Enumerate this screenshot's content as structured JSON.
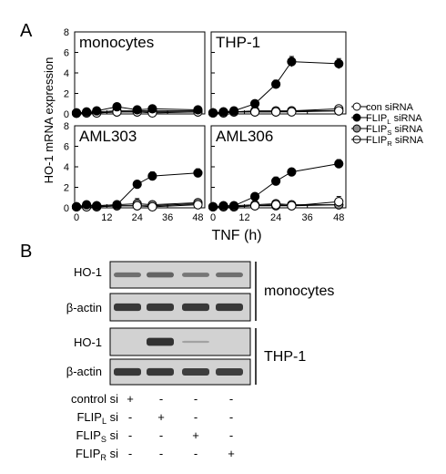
{
  "panel_a": {
    "letter": "A",
    "ylabel": "HO-1 mRNA expression",
    "xlabel": "TNF (h)",
    "legend": [
      {
        "base": "con siRNA",
        "sub": "",
        "suffix": "",
        "style": "open"
      },
      {
        "base": "FLIP",
        "sub": "L",
        "suffix": " siRNA",
        "style": "filled"
      },
      {
        "base": "FLIP",
        "sub": "S",
        "suffix": " siRNA",
        "style": "gray"
      },
      {
        "base": "FLIP",
        "sub": "R",
        "suffix": " siRNA",
        "style": "open-dot"
      }
    ]
  },
  "chart_data": [
    {
      "type": "line",
      "title": "monocytes",
      "x": [
        0,
        4,
        8,
        16,
        24,
        30,
        48
      ],
      "xlim": [
        0,
        50
      ],
      "ylim": [
        0,
        8
      ],
      "xticks": [
        "0",
        "12",
        "24",
        "36",
        "48"
      ],
      "yticks": [
        "0",
        "2",
        "4",
        "6",
        "8"
      ],
      "series": [
        {
          "name": "con siRNA",
          "values": [
            0.1,
            0.1,
            0.1,
            0.2,
            0.2,
            0.1,
            0.2
          ],
          "errors": [
            0.15,
            0.15,
            0.15,
            0.2,
            0.2,
            0.2,
            0.25
          ]
        },
        {
          "name": "FLIPL siRNA",
          "values": [
            0.1,
            0.2,
            0.3,
            0.7,
            0.4,
            0.5,
            0.4
          ],
          "errors": [
            0.15,
            0.2,
            0.2,
            0.3,
            0.3,
            0.3,
            0.3
          ]
        },
        {
          "name": "FLIPS siRNA",
          "values": [
            0.1,
            0.1,
            0.2,
            0.3,
            0.3,
            0.3,
            0.3
          ],
          "errors": [
            0.15,
            0.15,
            0.15,
            0.2,
            0.2,
            0.2,
            0.25
          ]
        },
        {
          "name": "FLIPR siRNA",
          "values": [
            0.05,
            0.1,
            0.1,
            0.2,
            0.2,
            0.2,
            0.2
          ],
          "errors": [
            0.15,
            0.15,
            0.15,
            0.2,
            0.2,
            0.2,
            0.2
          ]
        }
      ]
    },
    {
      "type": "line",
      "title": "THP-1",
      "x": [
        0,
        4,
        8,
        16,
        24,
        30,
        48
      ],
      "xlim": [
        0,
        50
      ],
      "ylim": [
        0,
        8
      ],
      "xticks": [
        "0",
        "12",
        "24",
        "36",
        "48"
      ],
      "yticks": [
        "0",
        "2",
        "4",
        "6",
        "8"
      ],
      "series": [
        {
          "name": "con siRNA",
          "values": [
            0.1,
            0.1,
            0.2,
            0.2,
            0.2,
            0.2,
            0.3
          ],
          "errors": [
            0.15,
            0.15,
            0.2,
            0.2,
            0.2,
            0.2,
            0.25
          ]
        },
        {
          "name": "FLIPL siRNA",
          "values": [
            0.1,
            0.2,
            0.3,
            1.0,
            2.9,
            5.1,
            4.9
          ],
          "errors": [
            0.15,
            0.2,
            0.2,
            0.3,
            0.4,
            0.5,
            0.5
          ]
        },
        {
          "name": "FLIPS siRNA",
          "values": [
            0.1,
            0.2,
            0.2,
            0.3,
            0.3,
            0.3,
            0.3
          ],
          "errors": [
            0.15,
            0.15,
            0.2,
            0.2,
            0.3,
            0.3,
            0.3
          ]
        },
        {
          "name": "FLIPR siRNA",
          "values": [
            0.1,
            0.1,
            0.2,
            0.2,
            0.2,
            0.3,
            0.5
          ],
          "errors": [
            0.15,
            0.15,
            0.2,
            0.2,
            0.2,
            0.2,
            0.3
          ]
        }
      ]
    },
    {
      "type": "line",
      "title": "AML303",
      "x": [
        0,
        4,
        8,
        16,
        24,
        30,
        48
      ],
      "xlim": [
        0,
        50
      ],
      "ylim": [
        0,
        8
      ],
      "xticks": [
        "0",
        "12",
        "24",
        "36",
        "48"
      ],
      "yticks": [
        "0",
        "2",
        "4",
        "6",
        "8"
      ],
      "series": [
        {
          "name": "con siRNA",
          "values": [
            0.1,
            0.1,
            0.1,
            0.2,
            0.2,
            0.1,
            0.3
          ],
          "errors": [
            0.15,
            0.15,
            0.15,
            0.2,
            0.2,
            0.2,
            0.2
          ]
        },
        {
          "name": "FLIPL siRNA",
          "values": [
            0.1,
            0.3,
            0.2,
            0.3,
            2.3,
            3.1,
            3.4
          ],
          "errors": [
            0.15,
            0.2,
            0.2,
            0.3,
            0.3,
            0.4,
            0.4
          ]
        },
        {
          "name": "FLIPS siRNA",
          "values": [
            0.1,
            0.2,
            0.2,
            0.3,
            0.4,
            0.3,
            0.5
          ],
          "errors": [
            0.15,
            0.2,
            0.2,
            0.3,
            0.5,
            0.3,
            0.3
          ]
        },
        {
          "name": "FLIPR siRNA",
          "values": [
            0.1,
            0.1,
            0.1,
            0.2,
            0.2,
            0.2,
            0.4
          ],
          "errors": [
            0.15,
            0.15,
            0.15,
            0.2,
            0.2,
            0.2,
            0.25
          ]
        }
      ]
    },
    {
      "type": "line",
      "title": "AML306",
      "x": [
        0,
        4,
        8,
        16,
        24,
        30,
        48
      ],
      "xlim": [
        0,
        50
      ],
      "ylim": [
        0,
        8
      ],
      "xticks": [
        "0",
        "12",
        "24",
        "36",
        "48"
      ],
      "yticks": [
        "0",
        "2",
        "4",
        "6",
        "8"
      ],
      "series": [
        {
          "name": "con siRNA",
          "values": [
            0.1,
            0.1,
            0.1,
            0.2,
            0.3,
            0.2,
            0.6
          ],
          "errors": [
            0.15,
            0.15,
            0.15,
            0.2,
            0.3,
            0.3,
            0.5
          ]
        },
        {
          "name": "FLIPL siRNA",
          "values": [
            0.1,
            0.2,
            0.2,
            1.1,
            2.6,
            3.5,
            4.3
          ],
          "errors": [
            0.15,
            0.2,
            0.2,
            0.3,
            0.4,
            0.3,
            0.4
          ]
        },
        {
          "name": "FLIPS siRNA",
          "values": [
            0.1,
            0.2,
            0.2,
            0.3,
            0.4,
            0.3,
            0.3
          ],
          "errors": [
            0.15,
            0.2,
            0.2,
            0.3,
            0.3,
            0.3,
            0.3
          ]
        },
        {
          "name": "FLIPR siRNA",
          "values": [
            0.1,
            0.1,
            0.1,
            0.2,
            0.2,
            0.2,
            0.3
          ],
          "errors": [
            0.15,
            0.15,
            0.15,
            0.2,
            0.2,
            0.2,
            0.25
          ]
        }
      ]
    }
  ],
  "panel_b": {
    "letter": "B",
    "blots": [
      {
        "label": "HO-1",
        "bands": [
          0.45,
          0.55,
          0.4,
          0.45
        ]
      },
      {
        "label": "β-actin",
        "bands": [
          0.9,
          0.9,
          0.9,
          0.9
        ]
      },
      {
        "label": "HO-1",
        "bands": [
          0,
          0.95,
          0.05,
          0
        ]
      },
      {
        "label": "β-actin",
        "bands": [
          0.9,
          0.9,
          0.85,
          0.85
        ]
      }
    ],
    "groups": [
      "monocytes",
      "THP-1"
    ],
    "conditions": [
      {
        "base": "control si",
        "sub": "",
        "suffix": "",
        "marks": [
          "+",
          "-",
          "-",
          "-"
        ]
      },
      {
        "base": "FLIP",
        "sub": "L",
        "suffix": " si",
        "marks": [
          "-",
          "+",
          "-",
          "-"
        ]
      },
      {
        "base": "FLIP",
        "sub": "S",
        "suffix": " si",
        "marks": [
          "-",
          "-",
          "+",
          "-"
        ]
      },
      {
        "base": "FLIP",
        "sub": "R",
        "suffix": " si",
        "marks": [
          "-",
          "-",
          "-",
          "+"
        ]
      }
    ]
  },
  "colors": {
    "filled": "#000000",
    "gray": "#8c8c8c",
    "open": "#ffffff",
    "line": "#000000",
    "blot_bg": "#d2d2d2",
    "band": "#2b2b2b"
  }
}
